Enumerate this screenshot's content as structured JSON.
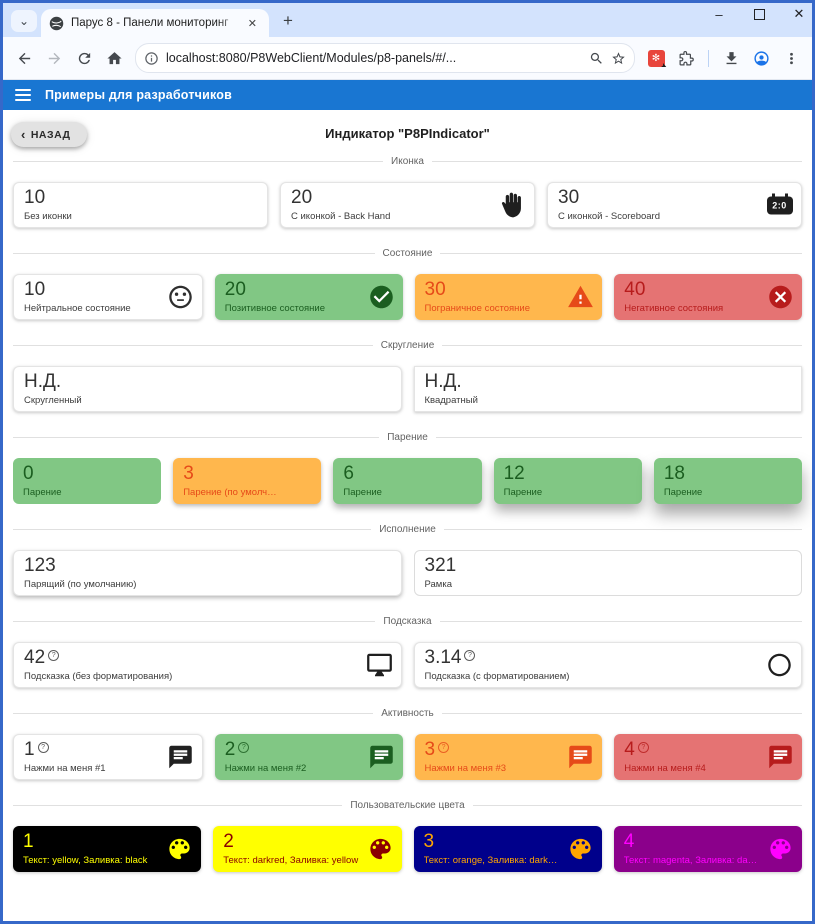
{
  "browser": {
    "tab_title": "Парус 8 - Панели мониторинг",
    "url": "localhost:8080/P8WebClient/Modules/p8-panels/#/...",
    "new_tab_label": "+"
  },
  "app_bar": {
    "title": "Примеры для разработчиков"
  },
  "page": {
    "back_label": "НАЗАД",
    "title": "Индикатор \"P8PIndicator\""
  },
  "icons": {
    "scoreboard_text": "2:0",
    "help_glyph": "?"
  },
  "palette": {
    "app_bar": "#1976d2",
    "positive_bg": "#81c784",
    "positive_fg": "#1b5e20",
    "warning_bg": "#ffb74d",
    "warning_fg": "#e64a19",
    "negative_bg": "#e57373",
    "negative_fg": "#b71c1c"
  },
  "sections": [
    {
      "title": "Иконка",
      "cards": [
        {
          "value": "10",
          "label": "Без иконки"
        },
        {
          "value": "20",
          "label": "С иконкой - Back Hand",
          "icon": "back-hand",
          "icon_color": "#1f1f1f"
        },
        {
          "value": "30",
          "label": "С иконкой - Scoreboard",
          "icon": "scoreboard"
        }
      ]
    },
    {
      "title": "Состояние",
      "cards": [
        {
          "value": "10",
          "label": "Нейтральное состояние",
          "icon": "sentiment-neutral",
          "icon_color": "#2f2f2f"
        },
        {
          "value": "20",
          "label": "Позитивное состояние",
          "icon": "check-circle",
          "bg": "#81c784",
          "fg": "#1b5e20",
          "icon_color": "#1b5e20"
        },
        {
          "value": "30",
          "label": "Пограничное состояние",
          "icon": "warning",
          "bg": "#ffb74d",
          "fg": "#e64a19",
          "icon_color": "#e64a19"
        },
        {
          "value": "40",
          "label": "Негативное состояния",
          "icon": "cancel",
          "bg": "#e57373",
          "fg": "#b71c1c",
          "icon_color": "#b71c1c"
        }
      ]
    },
    {
      "title": "Скругление",
      "cards": [
        {
          "value": "Н.Д.",
          "label": "Скругленный"
        },
        {
          "value": "Н.Д.",
          "label": "Квадратный",
          "square": true
        }
      ]
    },
    {
      "title": "Парение",
      "cards": [
        {
          "value": "0",
          "label": "Парение",
          "bg": "#81c784",
          "fg": "#1b5e20",
          "elevation": 0
        },
        {
          "value": "3",
          "label": "Парение (по умолчанию)",
          "bg": "#ffb74d",
          "fg": "#e64a19",
          "elevation": 3
        },
        {
          "value": "6",
          "label": "Парение",
          "bg": "#81c784",
          "fg": "#1b5e20",
          "elevation": 6
        },
        {
          "value": "12",
          "label": "Парение",
          "bg": "#81c784",
          "fg": "#1b5e20",
          "elevation": 12
        },
        {
          "value": "18",
          "label": "Парение",
          "bg": "#81c784",
          "fg": "#1b5e20",
          "elevation": 18
        }
      ]
    },
    {
      "title": "Исполнение",
      "cards": [
        {
          "value": "123",
          "label": "Парящий (по умолчанию)",
          "elevation": 3
        },
        {
          "value": "321",
          "label": "Рамка",
          "outlined": true
        }
      ]
    },
    {
      "title": "Подсказка",
      "cards": [
        {
          "value": "42",
          "help": true,
          "label": "Подсказка (без форматирования)",
          "icon": "desktop",
          "icon_color": "#1f1f1f"
        },
        {
          "value": "3.14",
          "help": true,
          "label": "Подсказка (с форматированием)",
          "icon": "circle-outline",
          "icon_color": "#1f1f1f"
        }
      ]
    },
    {
      "title": "Активность",
      "cards": [
        {
          "value": "1",
          "help": true,
          "label": "Нажми на меня #1",
          "icon": "chat",
          "icon_color": "#212121",
          "interactable": true
        },
        {
          "value": "2",
          "help": true,
          "label": "Нажми на меня #2",
          "icon": "chat",
          "bg": "#81c784",
          "fg": "#1b5e20",
          "icon_color": "#1b5e20",
          "interactable": true
        },
        {
          "value": "3",
          "help": true,
          "label": "Нажми на меня #3",
          "icon": "chat",
          "bg": "#ffb74d",
          "fg": "#e64a19",
          "icon_color": "#e64a19",
          "interactable": true
        },
        {
          "value": "4",
          "help": true,
          "label": "Нажми на меня #4",
          "icon": "chat",
          "bg": "#e57373",
          "fg": "#b71c1c",
          "icon_color": "#b71c1c",
          "interactable": true
        }
      ]
    },
    {
      "title": "Пользовательские цвета",
      "cards": [
        {
          "value": "1",
          "label": "Текст: yellow, Заливка: black",
          "icon": "palette",
          "bg": "black",
          "fg": "yellow",
          "icon_color": "yellow"
        },
        {
          "value": "2",
          "label": "Текст: darkred, Заливка: yellow",
          "icon": "palette",
          "bg": "yellow",
          "fg": "darkred",
          "icon_color": "darkred"
        },
        {
          "value": "3",
          "label": "Текст: orange, Заливка: darkblue",
          "icon": "palette",
          "bg": "darkblue",
          "fg": "orange",
          "icon_color": "orange"
        },
        {
          "value": "4",
          "label": "Текст: magenta, Заливка: darkmage...",
          "icon": "palette",
          "bg": "darkmagenta",
          "fg": "magenta",
          "icon_color": "magenta"
        }
      ]
    }
  ]
}
